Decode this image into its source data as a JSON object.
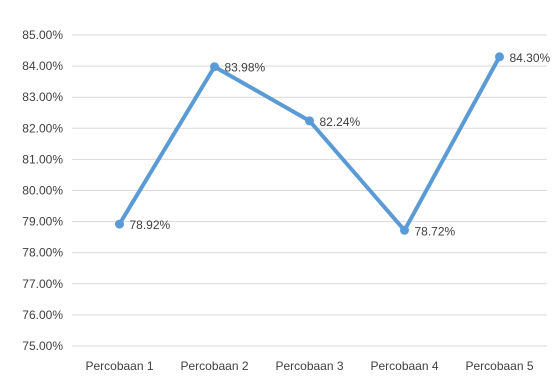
{
  "chart_data": {
    "type": "line",
    "categories": [
      "Percobaan 1",
      "Percobaan 2",
      "Percobaan 3",
      "Percobaan 4",
      "Percobaan 5"
    ],
    "series": [
      {
        "values": [
          78.92,
          83.98,
          82.24,
          78.72,
          84.3
        ],
        "labels": [
          "78.92%",
          "83.98%",
          "82.24%",
          "78.72%",
          "84.30%"
        ],
        "color": "#5b9bd5"
      }
    ],
    "ylim": [
      75,
      85
    ],
    "yticks": [
      "75.00%",
      "76.00%",
      "77.00%",
      "78.00%",
      "79.00%",
      "80.00%",
      "81.00%",
      "82.00%",
      "83.00%",
      "84.00%",
      "85.00%"
    ],
    "grid": true,
    "legend": "none"
  }
}
